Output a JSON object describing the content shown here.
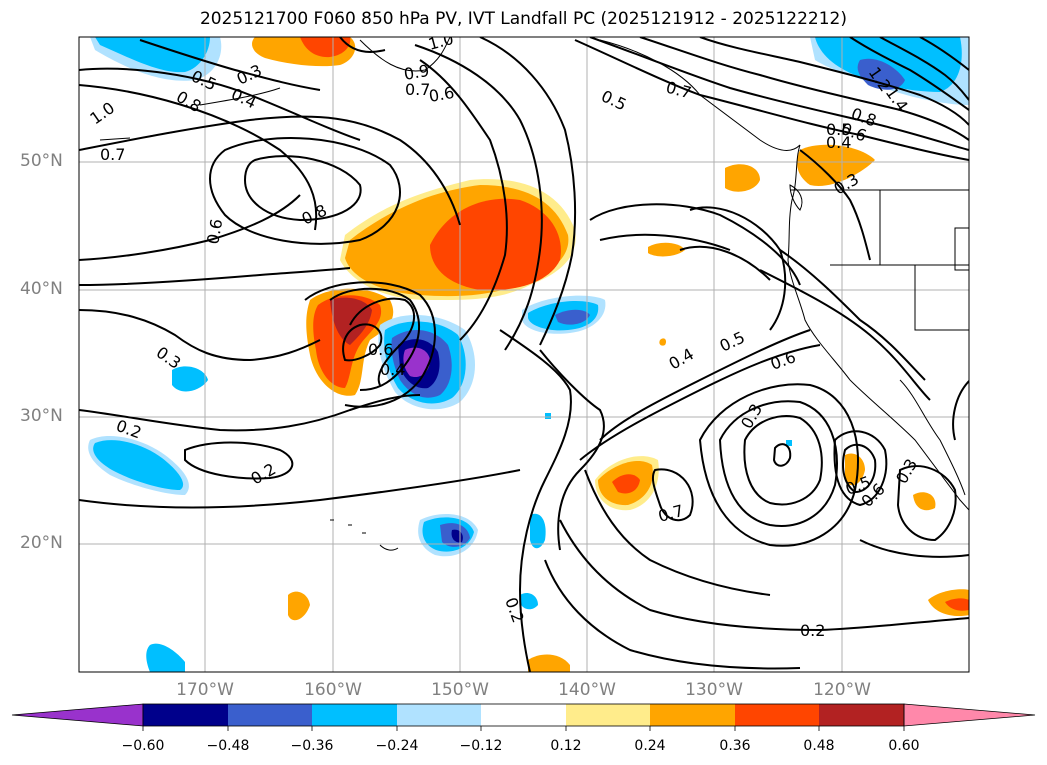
{
  "title": "2025121700 F060 850 hPa PV, IVT Landfall PC (2025121912 - 2025122212)",
  "lat_labels": [
    "50°N",
    "40°N",
    "30°N",
    "20°N"
  ],
  "lon_labels": [
    "170°W",
    "160°W",
    "150°W",
    "140°W",
    "130°W",
    "120°W"
  ],
  "colorbar": {
    "ticks": [
      "−0.60",
      "−0.48",
      "−0.36",
      "−0.24",
      "−0.12",
      "0.12",
      "0.24",
      "0.36",
      "0.48",
      "0.60"
    ],
    "colors": [
      "#9932cc",
      "#00008b",
      "#3a5fcd",
      "#00bfff",
      "#b0e2ff",
      "#ffffff",
      "#ffec8b",
      "#ffa500",
      "#ff4500",
      "#b22222",
      "#ff88aa"
    ]
  },
  "contour_labels": [
    "1.0",
    "0.5",
    "0.3",
    "0.4",
    "0.8",
    "0.7",
    "0.6",
    "0.9",
    "1.0",
    "0.7",
    "0.6",
    "0.5",
    "0.7",
    "0.8",
    "0.6",
    "0.4",
    "0.3",
    "0.8",
    "0.6",
    "0.3",
    "0.6",
    "0.5",
    "0.4",
    "0.5",
    "0.6",
    "0.3",
    "0.2",
    "0.2",
    "0.7",
    "0.5",
    "0.4",
    "0.3",
    "0.2",
    "0.2",
    "1.2",
    "1.4"
  ],
  "colors": {
    "axis": "#000000",
    "grid": "#b0b0b0",
    "tick_label": "#808080"
  }
}
